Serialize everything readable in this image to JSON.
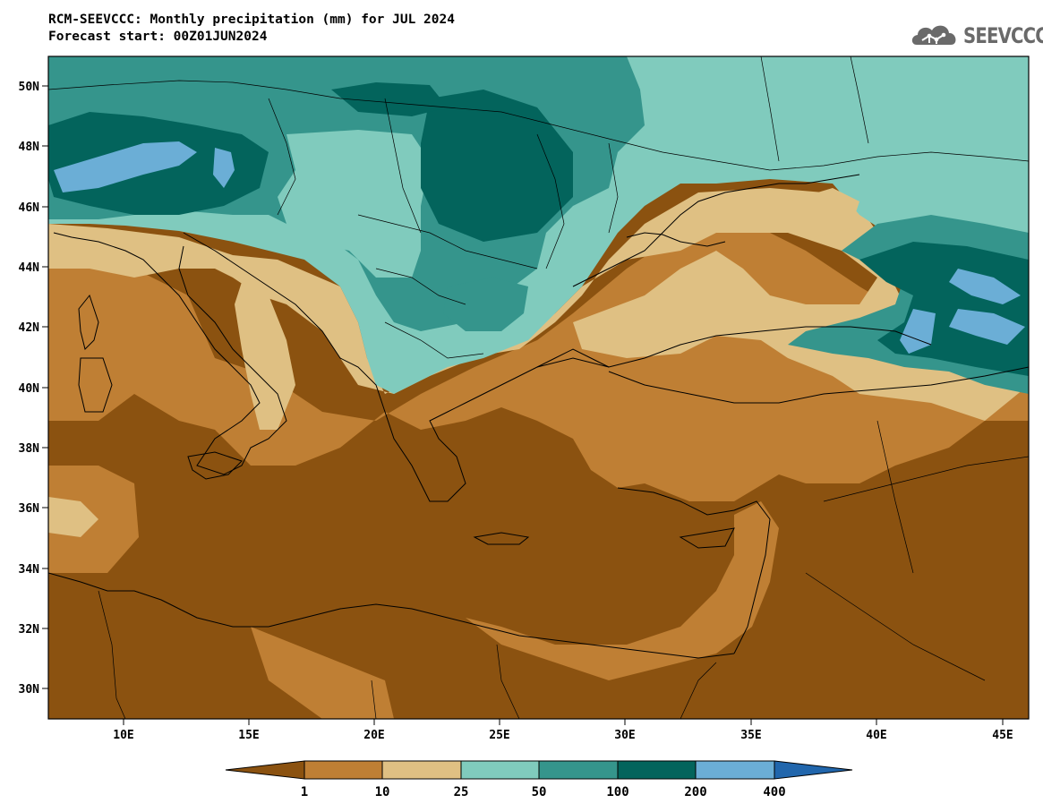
{
  "header": {
    "title_line1": "RCM-SEEVCCC: Monthly precipitation (mm) for JUL 2024",
    "title_line2": "Forecast start: 00Z01JUN2024"
  },
  "logo": {
    "text": "SEEVCCC",
    "icon": "cloud-network-icon"
  },
  "map": {
    "lon_range": [
      7,
      46
    ],
    "lat_range": [
      29,
      51
    ],
    "x_ticks": [
      "10E",
      "15E",
      "20E",
      "25E",
      "30E",
      "35E",
      "40E",
      "45E"
    ],
    "y_ticks": [
      "50N",
      "48N",
      "46N",
      "44N",
      "42N",
      "40N",
      "38N",
      "36N",
      "34N",
      "32N",
      "30N"
    ]
  },
  "colorbar": {
    "labels": [
      "1",
      "10",
      "25",
      "50",
      "100",
      "200",
      "400"
    ],
    "colors": [
      "#8b5210",
      "#bf7f34",
      "#dfc083",
      "#80cbbd",
      "#35958c",
      "#03645c",
      "#6baed6",
      "#2166ac"
    ]
  }
}
